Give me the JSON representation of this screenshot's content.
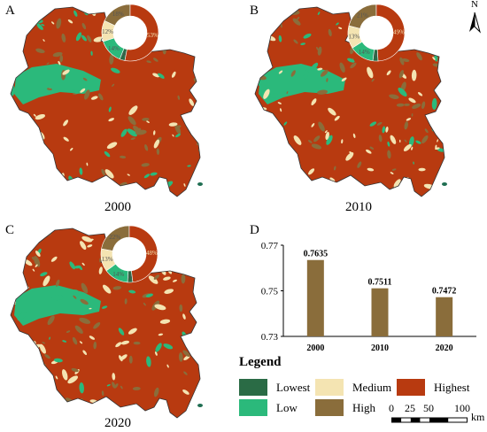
{
  "panels": [
    {
      "letter": "A",
      "year": "2000",
      "slices": [
        {
          "label": "3%",
          "value": 3
        },
        {
          "label": "14%",
          "value": 14
        },
        {
          "label": "12%",
          "value": 12
        },
        {
          "label": "18%",
          "value": 18
        },
        {
          "label": "53%",
          "value": 53
        }
      ]
    },
    {
      "letter": "B",
      "year": "2010",
      "slices": [
        {
          "label": "3%",
          "value": 3
        },
        {
          "label": "14%",
          "value": 14
        },
        {
          "label": "13%",
          "value": 13
        },
        {
          "label": "21%",
          "value": 21
        },
        {
          "label": "49%",
          "value": 49
        }
      ]
    },
    {
      "letter": "C",
      "year": "2020",
      "slices": [
        {
          "label": "3%",
          "value": 3
        },
        {
          "label": "14%",
          "value": 14
        },
        {
          "label": "13%",
          "value": 13
        },
        {
          "label": "22%",
          "value": 22
        },
        {
          "label": "48%",
          "value": 48
        }
      ]
    }
  ],
  "north_label": "N",
  "chart_data": {
    "type": "bar",
    "panel_letter": "D",
    "categories": [
      "2000",
      "2010",
      "2020"
    ],
    "values": [
      0.7635,
      0.7511,
      0.7472
    ],
    "value_labels": [
      "0.7635",
      "0.7511",
      "0.7472"
    ],
    "ylim": [
      0.73,
      0.77
    ],
    "yticks": [
      "0.77",
      "0.75",
      "0.73"
    ],
    "bar_color": "#8a6d3b"
  },
  "legend": {
    "title": "Legend",
    "items": [
      {
        "label": "Lowest",
        "color": "#2a6b45"
      },
      {
        "label": "Medium",
        "color": "#f4e4b2"
      },
      {
        "label": "Highest",
        "color": "#b83a10"
      },
      {
        "label": "Low",
        "color": "#2bb97b"
      },
      {
        "label": "High",
        "color": "#8a6d3b"
      }
    ]
  },
  "scale_bar": {
    "ticks": [
      "0",
      "25",
      "50",
      "100"
    ],
    "unit": "km"
  }
}
